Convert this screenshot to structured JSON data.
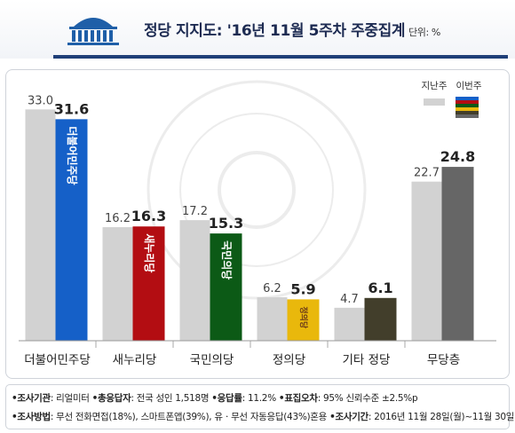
{
  "header": {
    "title": "정당 지지도: '16년 11월 5주차 주중집계",
    "unit": "단위: %"
  },
  "colors": {
    "previous_bar": "#d2d2d2",
    "header_rule": "#1f3f78",
    "parties": [
      "#1560c8",
      "#b30d12",
      "#0c5a16",
      "#e9b80c",
      "#423e2b",
      "#666666"
    ]
  },
  "chart_data": {
    "type": "bar",
    "categories": [
      "더불어민주당",
      "새누리당",
      "국민의당",
      "정의당",
      "기타 정당",
      "무당층"
    ],
    "series": [
      {
        "name": "지난주",
        "values": [
          33.0,
          16.2,
          17.2,
          6.2,
          4.7,
          22.7
        ]
      },
      {
        "name": "이번주",
        "values": [
          31.6,
          16.3,
          15.3,
          5.9,
          6.1,
          24.8
        ]
      }
    ],
    "value_labels": {
      "previous": [
        "33.0",
        "16.2",
        "17.2",
        "6.2",
        "4.7",
        "22.7"
      ],
      "current": [
        "31.6",
        "16.3",
        "15.3",
        "5.9",
        "6.1",
        "24.8"
      ]
    },
    "bar_logos": [
      "더불어민주당",
      "새누리당",
      "국민의당",
      "정의당",
      "",
      ""
    ],
    "legend_position": "top-right",
    "ylim": [
      0,
      36
    ],
    "grid": false
  },
  "footer": {
    "line1": [
      {
        "label": "•조사기관",
        "value": ": 리얼미터 "
      },
      {
        "label": "•총응답자",
        "value": ": 전국 성인 1,518명 "
      },
      {
        "label": "•응답률",
        "value": ": 11.2% "
      },
      {
        "label": "•표집오차",
        "value": ": 95% 신뢰수준 ±2.5%p"
      }
    ],
    "line2": [
      {
        "label": "•조사방법",
        "value": ": 무선 전화면접(18%), 스마트폰앱(39%), 유ㆍ무선 자동응답(43%)혼용 "
      },
      {
        "label": "•조사기간",
        "value": ": 2016년 11월 28일(월)~11월 30일(수)"
      }
    ]
  }
}
